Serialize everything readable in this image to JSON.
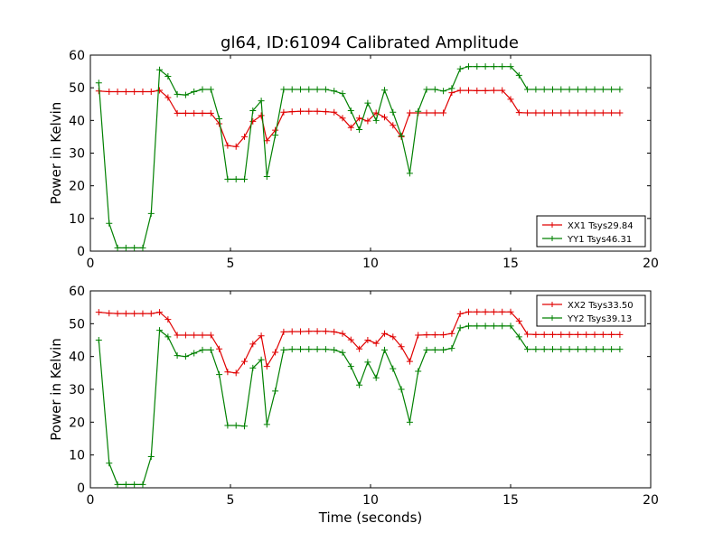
{
  "figure_title": "gl64, ID:61094 Calibrated Amplitude",
  "colors": {
    "xx": "#e00000",
    "yy": "#008000",
    "axes": "#000000",
    "background": "#ffffff"
  },
  "chart_data": [
    {
      "type": "line",
      "xlabel": "",
      "ylabel": "Power in Kelvin",
      "xlim": [
        0,
        20
      ],
      "ylim": [
        0,
        60
      ],
      "xticks": [
        0,
        5,
        10,
        15,
        20
      ],
      "yticks": [
        0,
        10,
        20,
        30,
        40,
        50,
        60
      ],
      "grid": false,
      "legend_position": "lower-right",
      "x": [
        0.3,
        0.67,
        0.97,
        1.27,
        1.57,
        1.87,
        2.17,
        2.47,
        2.77,
        3.1,
        3.4,
        3.7,
        4.0,
        4.3,
        4.6,
        4.9,
        5.2,
        5.5,
        5.8,
        6.1,
        6.3,
        6.6,
        6.9,
        7.2,
        7.5,
        7.8,
        8.1,
        8.4,
        8.7,
        9.0,
        9.3,
        9.6,
        9.9,
        10.2,
        10.5,
        10.8,
        11.1,
        11.4,
        11.7,
        12.0,
        12.3,
        12.6,
        12.9,
        13.2,
        13.5,
        13.8,
        14.1,
        14.4,
        14.7,
        15.0,
        15.3,
        15.6,
        15.9,
        16.2,
        16.5,
        16.8,
        17.1,
        17.4,
        17.7,
        18.0,
        18.3,
        18.6,
        18.9
      ],
      "series": [
        {
          "name": "XX1 Tsys29.84",
          "values": [
            49,
            48.8,
            48.8,
            48.8,
            48.8,
            48.8,
            48.8,
            49.2,
            47,
            42.2,
            42.2,
            42.2,
            42.2,
            42.2,
            39,
            32.3,
            32,
            35,
            39.7,
            41.5,
            33.8,
            37,
            42.5,
            42.7,
            42.8,
            42.8,
            42.8,
            42.7,
            42.5,
            40.7,
            37.8,
            40.7,
            39.8,
            42.3,
            41,
            38.5,
            35,
            42.3,
            42.3,
            42.3,
            42.3,
            42.3,
            48.5,
            49.2,
            49.2,
            49.1,
            49.1,
            49.2,
            49.2,
            46.5,
            42.4,
            42.3,
            42.3,
            42.3,
            42.3,
            42.3,
            42.3,
            42.3,
            42.3,
            42.3,
            42.3,
            42.3,
            42.3
          ]
        },
        {
          "name": "YY1 Tsys46.31",
          "values": [
            51.5,
            8.5,
            1,
            1,
            1,
            1,
            11.5,
            55.5,
            53.5,
            48,
            47.8,
            48.8,
            49.5,
            49.5,
            40.5,
            22,
            22,
            22,
            43,
            46,
            22.8,
            35.5,
            49.5,
            49.5,
            49.5,
            49.5,
            49.5,
            49.5,
            49,
            48.2,
            43,
            37.2,
            45.3,
            40,
            49.3,
            42.5,
            35.3,
            23.8,
            42.8,
            49.5,
            49.5,
            49,
            49.8,
            55.8,
            56.5,
            56.5,
            56.5,
            56.5,
            56.5,
            56.5,
            53.8,
            49.5,
            49.5,
            49.5,
            49.5,
            49.5,
            49.5,
            49.5,
            49.5,
            49.5,
            49.5,
            49.5,
            49.5
          ]
        }
      ]
    },
    {
      "type": "line",
      "xlabel": "Time (seconds)",
      "ylabel": "Power in Kelvin",
      "xlim": [
        0,
        20
      ],
      "ylim": [
        0,
        60
      ],
      "xticks": [
        0,
        5,
        10,
        15,
        20
      ],
      "yticks": [
        0,
        10,
        20,
        30,
        40,
        50,
        60
      ],
      "grid": false,
      "legend_position": "upper-right",
      "x": [
        0.3,
        0.67,
        0.97,
        1.27,
        1.57,
        1.87,
        2.17,
        2.47,
        2.77,
        3.1,
        3.4,
        3.7,
        4.0,
        4.3,
        4.6,
        4.9,
        5.2,
        5.5,
        5.8,
        6.1,
        6.3,
        6.6,
        6.9,
        7.2,
        7.5,
        7.8,
        8.1,
        8.4,
        8.7,
        9.0,
        9.3,
        9.6,
        9.9,
        10.2,
        10.5,
        10.8,
        11.1,
        11.4,
        11.7,
        12.0,
        12.3,
        12.6,
        12.9,
        13.2,
        13.5,
        13.8,
        14.1,
        14.4,
        14.7,
        15.0,
        15.3,
        15.6,
        15.9,
        16.2,
        16.5,
        16.8,
        17.1,
        17.4,
        17.7,
        18.0,
        18.3,
        18.6,
        18.9
      ],
      "series": [
        {
          "name": "XX2 Tsys33.50",
          "values": [
            53.5,
            53.2,
            53.1,
            53.1,
            53.1,
            53.1,
            53.1,
            53.5,
            51.3,
            46.5,
            46.5,
            46.5,
            46.5,
            46.5,
            42.3,
            35.3,
            35,
            38.5,
            43.8,
            46.3,
            37,
            41.3,
            47.5,
            47.6,
            47.6,
            47.7,
            47.7,
            47.7,
            47.5,
            47,
            45.1,
            42.3,
            45,
            44,
            47,
            46,
            43,
            38.5,
            46.5,
            46.6,
            46.6,
            46.6,
            47,
            53,
            53.6,
            53.6,
            53.6,
            53.6,
            53.6,
            53.6,
            50.8,
            46.8,
            46.7,
            46.7,
            46.7,
            46.7,
            46.7,
            46.7,
            46.7,
            46.7,
            46.7,
            46.7,
            46.7
          ]
        },
        {
          "name": "YY2 Tsys39.13",
          "values": [
            45,
            7.5,
            1,
            1,
            1,
            1,
            9.5,
            48,
            46,
            40.3,
            40,
            41,
            42,
            42,
            34.5,
            19,
            19,
            18.8,
            36.5,
            39,
            19.3,
            29.5,
            42,
            42.2,
            42.2,
            42.2,
            42.2,
            42.2,
            42,
            41.2,
            37,
            31.3,
            38.3,
            33.5,
            42,
            36.3,
            30,
            20,
            35.5,
            42,
            42,
            42,
            42.5,
            48.7,
            49.3,
            49.3,
            49.3,
            49.3,
            49.3,
            49.3,
            46,
            42.2,
            42.2,
            42.2,
            42.2,
            42.2,
            42.2,
            42.2,
            42.2,
            42.2,
            42.2,
            42.2,
            42.2
          ]
        }
      ]
    }
  ]
}
